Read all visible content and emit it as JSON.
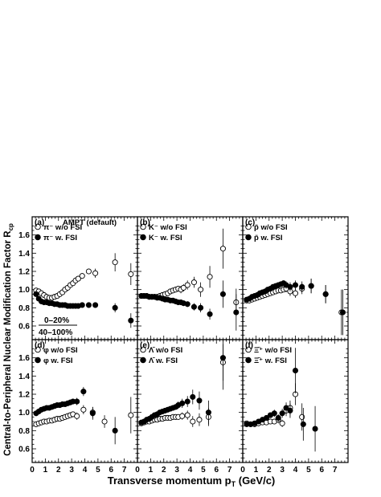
{
  "figure": {
    "ylabel_main": "Central-to-Peripheral Nuclear Modification Factor R",
    "ylabel_sub": "cp",
    "xlabel_main": "Transverse momentum p",
    "xlabel_sub": "T",
    "xlabel_unit": " (GeV/c)",
    "ratio_num": "0–20%",
    "ratio_den": "40–100%"
  },
  "chart_data": [
    {
      "panel": "(a)",
      "header": "AMPT (default)",
      "type": "scatter",
      "ylim": [
        0.45,
        1.8
      ],
      "xlim": [
        0,
        8
      ],
      "series": [
        {
          "name": "π⁻ w/o FSI",
          "marker": "open",
          "x": [
            0.3,
            0.5,
            0.7,
            0.9,
            1.1,
            1.3,
            1.5,
            1.7,
            1.9,
            2.1,
            2.3,
            2.5,
            2.7,
            2.9,
            3.1,
            3.3,
            3.5,
            3.8,
            4.3,
            4.8,
            6.3,
            7.5
          ],
          "y": [
            0.99,
            0.98,
            0.96,
            0.94,
            0.92,
            0.91,
            0.91,
            0.92,
            0.93,
            0.95,
            0.97,
            1.0,
            1.02,
            1.05,
            1.07,
            1.1,
            1.12,
            1.15,
            1.2,
            1.18,
            1.3,
            1.17
          ],
          "err": [
            0.01,
            0.01,
            0.01,
            0.01,
            0.01,
            0.01,
            0.01,
            0.01,
            0.01,
            0.01,
            0.01,
            0.01,
            0.01,
            0.02,
            0.02,
            0.02,
            0.02,
            0.03,
            0.03,
            0.05,
            0.1,
            0.12
          ]
        },
        {
          "name": "π⁻ w. FSI",
          "marker": "filled",
          "x": [
            0.3,
            0.5,
            0.7,
            0.9,
            1.1,
            1.3,
            1.5,
            1.7,
            1.9,
            2.1,
            2.3,
            2.5,
            2.7,
            2.9,
            3.1,
            3.3,
            3.5,
            3.8,
            4.3,
            4.8,
            6.3,
            7.5
          ],
          "y": [
            0.95,
            0.9,
            0.87,
            0.86,
            0.86,
            0.85,
            0.85,
            0.84,
            0.84,
            0.83,
            0.83,
            0.83,
            0.82,
            0.82,
            0.82,
            0.82,
            0.82,
            0.83,
            0.83,
            0.83,
            0.8,
            0.66
          ],
          "err": [
            0.01,
            0.01,
            0.01,
            0.01,
            0.01,
            0.01,
            0.01,
            0.01,
            0.01,
            0.01,
            0.01,
            0.01,
            0.01,
            0.01,
            0.01,
            0.02,
            0.02,
            0.02,
            0.03,
            0.03,
            0.05,
            0.08
          ]
        }
      ]
    },
    {
      "panel": "(b)",
      "header": "",
      "type": "scatter",
      "ylim": [
        0.45,
        1.8
      ],
      "xlim": [
        0,
        8
      ],
      "series": [
        {
          "name": "K⁻ w/o FSI",
          "marker": "open",
          "x": [
            0.3,
            0.5,
            0.7,
            0.9,
            1.1,
            1.3,
            1.5,
            1.7,
            1.9,
            2.1,
            2.3,
            2.5,
            2.7,
            2.9,
            3.1,
            3.3,
            3.5,
            3.8,
            4.3,
            4.8,
            5.5,
            6.5,
            7.5
          ],
          "y": [
            0.93,
            0.93,
            0.93,
            0.92,
            0.92,
            0.92,
            0.92,
            0.93,
            0.94,
            0.95,
            0.96,
            0.98,
            0.99,
            1.0,
            1.01,
            1.0,
            1.02,
            1.05,
            1.08,
            1.0,
            1.14,
            1.45,
            0.86
          ],
          "err": [
            0.01,
            0.01,
            0.01,
            0.01,
            0.01,
            0.01,
            0.01,
            0.01,
            0.01,
            0.01,
            0.02,
            0.02,
            0.02,
            0.03,
            0.03,
            0.04,
            0.04,
            0.05,
            0.06,
            0.08,
            0.12,
            0.22,
            0.15
          ]
        },
        {
          "name": "K⁻ w. FSI",
          "marker": "filled",
          "x": [
            0.3,
            0.5,
            0.7,
            0.9,
            1.1,
            1.3,
            1.5,
            1.7,
            1.9,
            2.1,
            2.3,
            2.5,
            2.7,
            2.9,
            3.1,
            3.3,
            3.5,
            3.8,
            4.3,
            4.8,
            5.5,
            6.5,
            7.5
          ],
          "y": [
            0.93,
            0.93,
            0.93,
            0.92,
            0.92,
            0.92,
            0.91,
            0.91,
            0.9,
            0.89,
            0.89,
            0.88,
            0.88,
            0.87,
            0.86,
            0.86,
            0.85,
            0.84,
            0.81,
            0.8,
            0.73,
            0.95,
            0.75
          ],
          "err": [
            0.01,
            0.01,
            0.01,
            0.01,
            0.01,
            0.01,
            0.01,
            0.01,
            0.01,
            0.01,
            0.01,
            0.02,
            0.02,
            0.02,
            0.02,
            0.02,
            0.03,
            0.03,
            0.04,
            0.05,
            0.06,
            0.15,
            0.2
          ]
        }
      ]
    },
    {
      "panel": "(c)",
      "header": "",
      "type": "scatter",
      "ylim": [
        0.45,
        1.8
      ],
      "xlim": [
        0,
        8
      ],
      "series": [
        {
          "name": "p̄ w/o FSI",
          "marker": "open",
          "x": [
            0.3,
            0.5,
            0.7,
            0.9,
            1.1,
            1.3,
            1.5,
            1.7,
            1.9,
            2.1,
            2.3,
            2.5,
            2.7,
            2.9,
            3.1,
            3.3,
            3.6,
            4.0,
            4.5,
            5.2,
            6.3,
            7.5
          ],
          "y": [
            0.88,
            0.88,
            0.89,
            0.9,
            0.91,
            0.92,
            0.93,
            0.94,
            0.95,
            0.96,
            0.97,
            0.98,
            0.99,
            0.99,
            1.0,
            1.01,
            0.98,
            0.96,
            1.01,
            1.04,
            0.95,
            0.75
          ],
          "err": [
            0.01,
            0.01,
            0.01,
            0.01,
            0.01,
            0.01,
            0.01,
            0.01,
            0.01,
            0.02,
            0.02,
            0.02,
            0.02,
            0.03,
            0.03,
            0.04,
            0.05,
            0.05,
            0.06,
            0.08,
            0.1,
            0.25
          ]
        },
        {
          "name": "p̄ w. FSI",
          "marker": "filled",
          "x": [
            0.3,
            0.5,
            0.7,
            0.9,
            1.1,
            1.3,
            1.5,
            1.7,
            1.9,
            2.1,
            2.3,
            2.5,
            2.7,
            2.9,
            3.1,
            3.3,
            3.6,
            4.0,
            4.5,
            5.2,
            6.3,
            7.6
          ],
          "y": [
            0.89,
            0.9,
            0.92,
            0.93,
            0.94,
            0.96,
            0.97,
            0.98,
            1.0,
            1.01,
            1.03,
            1.04,
            1.05,
            1.06,
            1.07,
            1.05,
            1.03,
            1.05,
            1.03,
            1.04,
            0.95,
            0.75
          ],
          "err": [
            0.01,
            0.01,
            0.01,
            0.01,
            0.01,
            0.01,
            0.01,
            0.01,
            0.01,
            0.02,
            0.02,
            0.02,
            0.02,
            0.03,
            0.03,
            0.04,
            0.05,
            0.05,
            0.06,
            0.08,
            0.1,
            0.25
          ]
        }
      ]
    },
    {
      "panel": "(d)",
      "header": "",
      "type": "scatter",
      "ylim": [
        0.45,
        1.8
      ],
      "xlim": [
        0,
        8
      ],
      "series": [
        {
          "name": "φ w/o FSI",
          "marker": "open",
          "x": [
            0.3,
            0.5,
            0.7,
            0.9,
            1.1,
            1.3,
            1.5,
            1.7,
            1.9,
            2.1,
            2.3,
            2.5,
            2.7,
            2.9,
            3.1,
            3.4,
            3.9,
            4.6,
            5.5,
            7.5
          ],
          "y": [
            0.87,
            0.88,
            0.89,
            0.9,
            0.9,
            0.91,
            0.91,
            0.92,
            0.93,
            0.93,
            0.94,
            0.95,
            0.96,
            0.97,
            0.98,
            0.96,
            1.03,
            1.0,
            0.9,
            0.97
          ],
          "err": [
            0.01,
            0.01,
            0.01,
            0.01,
            0.01,
            0.01,
            0.01,
            0.01,
            0.01,
            0.02,
            0.02,
            0.02,
            0.02,
            0.03,
            0.03,
            0.04,
            0.05,
            0.06,
            0.07,
            0.2
          ]
        },
        {
          "name": "φ w. FSI",
          "marker": "filled",
          "x": [
            0.3,
            0.5,
            0.7,
            0.9,
            1.1,
            1.3,
            1.5,
            1.7,
            1.9,
            2.1,
            2.3,
            2.5,
            2.7,
            2.9,
            3.1,
            3.4,
            3.9,
            4.6,
            6.3
          ],
          "y": [
            0.99,
            1.01,
            1.03,
            1.04,
            1.05,
            1.05,
            1.06,
            1.07,
            1.08,
            1.08,
            1.09,
            1.09,
            1.1,
            1.11,
            1.12,
            1.12,
            1.23,
            0.99,
            0.8
          ],
          "err": [
            0.01,
            0.01,
            0.01,
            0.01,
            0.01,
            0.01,
            0.01,
            0.01,
            0.01,
            0.02,
            0.02,
            0.02,
            0.02,
            0.03,
            0.03,
            0.04,
            0.05,
            0.07,
            0.15
          ]
        }
      ]
    },
    {
      "panel": "(e)",
      "header": "",
      "type": "scatter",
      "ylim": [
        0.45,
        1.8
      ],
      "xlim": [
        0,
        8
      ],
      "series": [
        {
          "name": "Λ̄ w/o FSI",
          "marker": "open",
          "x": [
            0.3,
            0.5,
            0.7,
            0.9,
            1.1,
            1.3,
            1.5,
            1.7,
            1.9,
            2.1,
            2.3,
            2.5,
            2.7,
            2.9,
            3.1,
            3.4,
            3.8,
            4.2,
            4.7,
            5.4,
            6.5
          ],
          "y": [
            0.88,
            0.89,
            0.9,
            0.9,
            0.91,
            0.92,
            0.92,
            0.93,
            0.93,
            0.94,
            0.94,
            0.94,
            0.95,
            0.95,
            0.95,
            0.96,
            0.97,
            0.9,
            0.92,
            0.95,
            1.55
          ],
          "err": [
            0.01,
            0.01,
            0.01,
            0.01,
            0.01,
            0.01,
            0.01,
            0.01,
            0.01,
            0.02,
            0.02,
            0.02,
            0.02,
            0.03,
            0.03,
            0.04,
            0.05,
            0.06,
            0.07,
            0.1,
            0.2
          ]
        },
        {
          "name": "Λ̄ w. FSI",
          "marker": "filled",
          "x": [
            0.3,
            0.5,
            0.7,
            0.9,
            1.1,
            1.3,
            1.5,
            1.7,
            1.9,
            2.1,
            2.3,
            2.5,
            2.7,
            2.9,
            3.1,
            3.4,
            3.8,
            4.2,
            4.7,
            5.4,
            6.5
          ],
          "y": [
            0.89,
            0.9,
            0.92,
            0.93,
            0.95,
            0.97,
            0.98,
            1.0,
            1.01,
            1.02,
            1.03,
            1.04,
            1.05,
            1.06,
            1.08,
            1.1,
            1.12,
            1.17,
            1.13,
            1.0,
            1.6
          ],
          "err": [
            0.01,
            0.01,
            0.01,
            0.01,
            0.01,
            0.01,
            0.01,
            0.01,
            0.01,
            0.02,
            0.02,
            0.02,
            0.03,
            0.03,
            0.04,
            0.05,
            0.06,
            0.08,
            0.1,
            0.13,
            0.35
          ]
        }
      ]
    },
    {
      "panel": "(f)",
      "header": "",
      "type": "scatter",
      "ylim": [
        0.45,
        1.8
      ],
      "xlim": [
        0,
        8
      ],
      "series": [
        {
          "name": "Ξ̄⁺ w/o FSI",
          "marker": "open",
          "x": [
            0.3,
            0.6,
            0.9,
            1.2,
            1.5,
            1.8,
            2.1,
            2.4,
            2.7,
            3.0,
            3.3,
            3.6,
            4.0,
            4.5
          ],
          "y": [
            0.88,
            0.87,
            0.87,
            0.88,
            0.89,
            0.89,
            0.9,
            0.9,
            0.92,
            0.88,
            1.02,
            1.05,
            1.2,
            0.95
          ],
          "err": [
            0.01,
            0.01,
            0.02,
            0.02,
            0.02,
            0.02,
            0.03,
            0.03,
            0.04,
            0.04,
            0.06,
            0.08,
            0.12,
            0.15
          ]
        },
        {
          "name": "Ξ̄⁺ w. FSI",
          "marker": "filled",
          "x": [
            0.3,
            0.6,
            0.9,
            1.2,
            1.5,
            1.8,
            2.1,
            2.4,
            2.7,
            3.0,
            3.3,
            3.6,
            4.0,
            4.6,
            5.5
          ],
          "y": [
            0.87,
            0.87,
            0.88,
            0.9,
            0.92,
            0.94,
            0.97,
            0.99,
            0.94,
            0.99,
            1.05,
            1.02,
            1.46,
            0.87,
            0.82
          ],
          "err": [
            0.01,
            0.01,
            0.02,
            0.02,
            0.02,
            0.03,
            0.03,
            0.04,
            0.04,
            0.05,
            0.06,
            0.08,
            0.25,
            0.18,
            0.25
          ]
        }
      ]
    }
  ]
}
